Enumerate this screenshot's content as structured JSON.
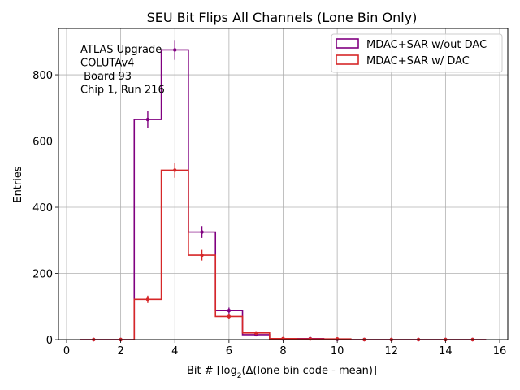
{
  "chart_data": {
    "type": "histogram",
    "title": "SEU Bit Flips All Channels (Lone Bin Only)",
    "xlabel_pre": "Bit # [log",
    "xlabel_sub": "2",
    "xlabel_post": "(Δ(lone bin code - mean)]",
    "ylabel": "Entries",
    "xlim": [
      -0.3,
      16.3
    ],
    "ylim": [
      0,
      940
    ],
    "xticks": [
      0,
      2,
      4,
      6,
      8,
      10,
      12,
      14,
      16
    ],
    "yticks": [
      0,
      200,
      400,
      600,
      800
    ],
    "grid": true,
    "legend_position": "top-right",
    "annotation": [
      "ATLAS Upgrade",
      "COLUTAv4",
      " Board 93",
      "Chip 1, Run 216"
    ],
    "bins": [
      1,
      2,
      3,
      4,
      5,
      6,
      7,
      8,
      9,
      10,
      11,
      12,
      13,
      14,
      15
    ],
    "series": [
      {
        "name": "MDAC+SAR w/out DAC",
        "color": "#800080",
        "values": [
          0,
          0,
          665,
          875,
          325,
          88,
          15,
          2,
          3,
          1,
          0,
          0,
          0,
          0,
          0
        ],
        "errors": [
          0,
          0,
          26,
          30,
          18,
          9,
          4,
          1.4,
          1.7,
          1,
          0,
          0,
          0,
          0,
          0
        ]
      },
      {
        "name": "MDAC+SAR w/ DAC",
        "color": "#d62728",
        "values": [
          0,
          0,
          122,
          512,
          255,
          70,
          20,
          3,
          2,
          2,
          0,
          0,
          0,
          0,
          0
        ],
        "errors": [
          0,
          0,
          11,
          23,
          16,
          8,
          4.5,
          1.7,
          1.4,
          1.4,
          0,
          0,
          0,
          0,
          0
        ]
      }
    ]
  }
}
